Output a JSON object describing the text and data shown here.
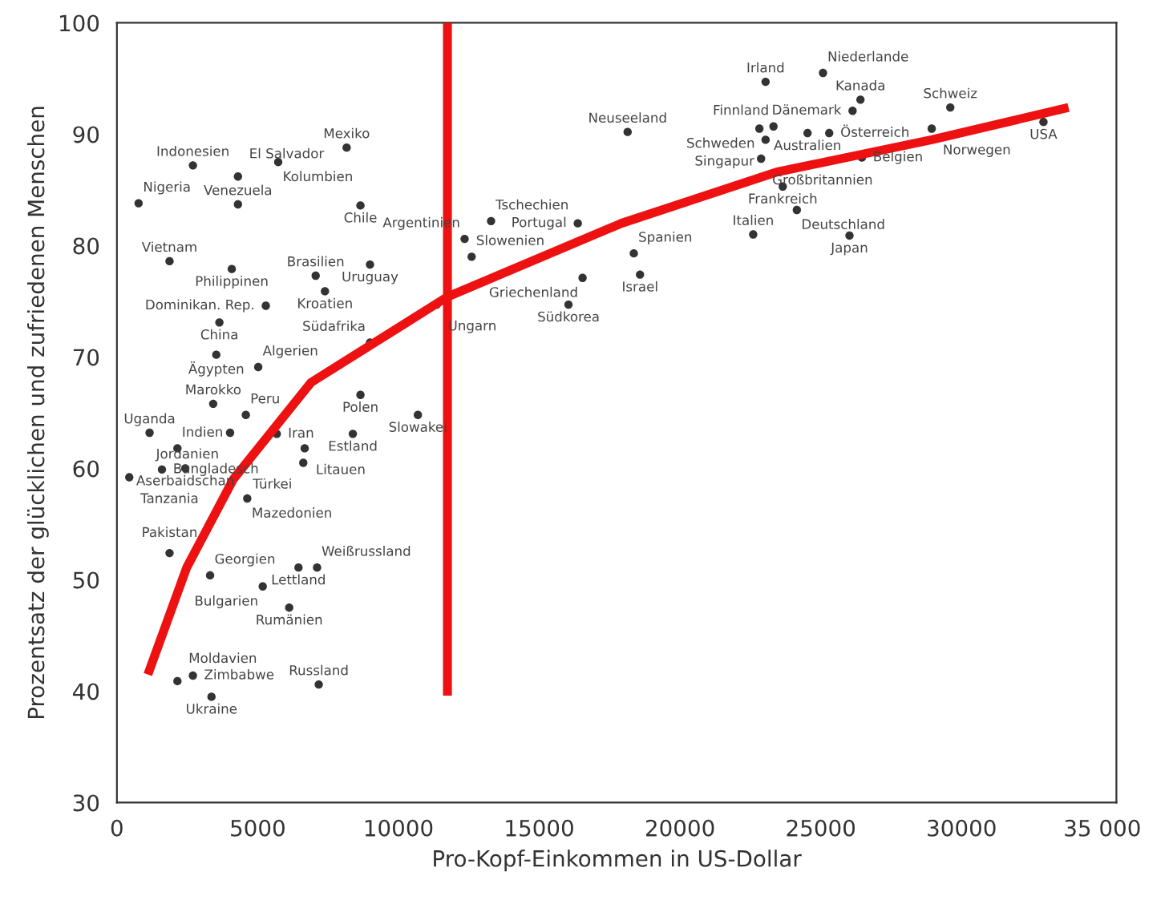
{
  "chart_data": {
    "type": "scatter",
    "xlabel": "Pro-Kopf-Einkommen in US-Dollar",
    "ylabel": "Prozentsatz der glücklichen und zufriedenen Menschen",
    "xlim": [
      0,
      35500
    ],
    "ylim": [
      30,
      100
    ],
    "xticks": [
      0,
      5000,
      10000,
      15000,
      20000,
      25000,
      30000,
      {
        "value": 35000,
        "label": "35 000"
      }
    ],
    "yticks": [
      30,
      40,
      50,
      60,
      70,
      80,
      90,
      100
    ],
    "grid": false,
    "legend": false,
    "series": [
      {
        "marker": "circle",
        "color": "#333333",
        "x": [
          4300,
          12600,
          2700,
          4300,
          5730,
          8160,
          770,
          8650,
          1870,
          4080,
          7060,
          8990,
          7390,
          5290,
          3640,
          11360,
          3530,
          5020,
          8990,
          3420,
          4580,
          1160,
          4020,
          5680,
          8650,
          10690,
          8380,
          2150,
          6670,
          2430,
          1600,
          6620,
          440,
          4630,
          1870,
          3310,
          6450,
          7110,
          5180,
          6120,
          2150,
          2700,
          3360,
          7170,
          18140,
          13290,
          12350,
          16370,
          18360,
          18580,
          16540,
          16040,
          22600,
          23040,
          25080,
          26410,
          26130,
          29600,
          28940,
          32910,
          23320,
          22820,
          23040,
          22880,
          24530,
          25300,
          26460,
          23650,
          24150,
          26020
        ],
        "values": [
          83.7,
          79.0,
          87.2,
          86.2,
          87.5,
          88.8,
          83.8,
          83.6,
          78.6,
          77.9,
          77.3,
          78.3,
          75.9,
          74.6,
          73.1,
          74.7,
          70.2,
          69.1,
          71.3,
          65.8,
          64.8,
          63.2,
          63.2,
          63.1,
          66.6,
          64.8,
          63.1,
          61.8,
          61.8,
          60.0,
          59.9,
          60.5,
          59.2,
          57.3,
          52.4,
          50.4,
          51.1,
          51.1,
          49.4,
          47.5,
          40.9,
          41.4,
          39.5,
          40.6,
          90.2,
          82.2,
          80.6,
          82.0,
          79.3,
          77.4,
          77.1,
          74.7,
          81.0,
          94.7,
          95.5,
          93.1,
          92.1,
          92.4,
          90.5,
          91.1,
          90.7,
          90.5,
          89.5,
          87.8,
          90.1,
          90.1,
          87.9,
          85.3,
          83.2,
          80.9
        ],
        "value_labels": [
          "Venezuela",
          "Slowenien",
          "Indonesien",
          "El Salvador",
          "Kolumbien",
          "Mexiko",
          "Nigeria",
          "Chile",
          "Vietnam",
          "Philippinen",
          "Brasilien",
          "Uruguay",
          "Kroatien",
          "Dominikan. Rep.",
          "China",
          "Ungarn",
          "Ägypten",
          "Algerien",
          "Südafrika",
          "Marokko",
          "Peru",
          "Uganda",
          "Jordanien",
          "Iran",
          "Polen",
          "Slowakei",
          "Estland",
          "Indien",
          "Litauen",
          "Aserbaidschan",
          "Bangladesch",
          "Türkei",
          "Tanzania",
          "Mazedonien",
          "Pakistan",
          "Georgien",
          "Lettland",
          "Weißrussland",
          "Bulgarien",
          "Rumänien",
          "Moldavien",
          "Zimbabwe",
          "Ukraine",
          "Russland",
          "Neuseeland",
          "Tschechien",
          "Argentinien",
          "Portugal",
          "Spanien",
          "Israel",
          "Griechenland",
          "Südkorea",
          "Italien",
          "Irland",
          "Niederlande",
          "Kanada",
          "Dänemark",
          "Schweiz",
          "Norwegen",
          "USA",
          "Finnland",
          "Schweden",
          "Singapur",
          "Großbritannien",
          "Australien",
          "Österreich",
          "Belgien",
          "Frankreich",
          "Deutschland",
          "Japan"
        ]
      },
      {
        "type": "line",
        "color": "#ee1111",
        "x": [
          1100,
          2480,
          4130,
          6890,
          11740,
          17920,
          23430,
          28940,
          33800
        ],
        "values": [
          41.5,
          51.1,
          59.0,
          67.7,
          75.4,
          82.0,
          86.6,
          89.5,
          92.4
        ]
      },
      {
        "type": "line",
        "color": "#ee1111",
        "x": [
          11740,
          11740
        ],
        "values": [
          100,
          39.6
        ]
      }
    ]
  }
}
